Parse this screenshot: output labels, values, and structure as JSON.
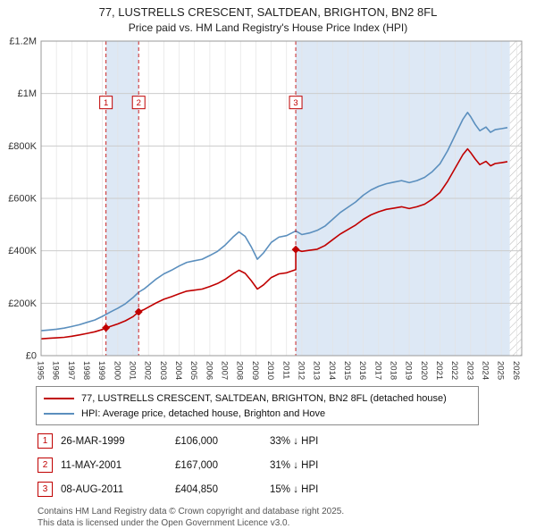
{
  "chart_data": {
    "type": "line",
    "title": "77, LUSTRELLS CRESCENT, SALTDEAN, BRIGHTON, BN2 8FL",
    "subtitle": "Price paid vs. HM Land Registry's House Price Index (HPI)",
    "xlim": [
      1995,
      2026.33
    ],
    "ylim": [
      0,
      1200000
    ],
    "grid": true,
    "legend_position": "below",
    "y_ticks": [
      {
        "value": 0,
        "label": "£0"
      },
      {
        "value": 200000,
        "label": "£200K"
      },
      {
        "value": 400000,
        "label": "£400K"
      },
      {
        "value": 600000,
        "label": "£600K"
      },
      {
        "value": 800000,
        "label": "£800K"
      },
      {
        "value": 1000000,
        "label": "£1M"
      },
      {
        "value": 1200000,
        "label": "£1.2M"
      }
    ],
    "x_ticks": [
      1995,
      1996,
      1997,
      1998,
      1999,
      2000,
      2001,
      2002,
      2003,
      2004,
      2005,
      2006,
      2007,
      2008,
      2009,
      2010,
      2011,
      2012,
      2013,
      2014,
      2015,
      2016,
      2017,
      2018,
      2019,
      2020,
      2021,
      2022,
      2023,
      2024,
      2025,
      2026
    ],
    "colors": {
      "price": "#c00000",
      "hpi": "#5b8fbe",
      "band": "#dde8f5",
      "grid_h": "#cccccc",
      "grid_v": "#e3e3e3",
      "hatch": "#b5b5b5",
      "border": "#999999",
      "axis_text": "#333333"
    },
    "bands": [
      {
        "from": 1999.23,
        "to": 2001.36
      },
      {
        "from": 2011.6,
        "to": 2025.55
      }
    ],
    "future_hatch": {
      "from": 2025.55,
      "to": 2026.33
    },
    "series": [
      {
        "id": "hpi-line",
        "name": "HPI: Average price, detached house, Brighton and Hove",
        "color": "#5b8fbe",
        "points": [
          [
            1995.0,
            95000
          ],
          [
            1995.5,
            98000
          ],
          [
            1996.0,
            101000
          ],
          [
            1996.5,
            105000
          ],
          [
            1997.0,
            111000
          ],
          [
            1997.5,
            118000
          ],
          [
            1998.0,
            127000
          ],
          [
            1998.5,
            136000
          ],
          [
            1999.0,
            150000
          ],
          [
            1999.25,
            158000
          ],
          [
            1999.5,
            166000
          ],
          [
            2000.0,
            181000
          ],
          [
            2000.5,
            198000
          ],
          [
            2001.0,
            222000
          ],
          [
            2001.36,
            242000
          ],
          [
            2001.75,
            256000
          ],
          [
            2002.0,
            268000
          ],
          [
            2002.5,
            292000
          ],
          [
            2003.0,
            312000
          ],
          [
            2003.5,
            326000
          ],
          [
            2004.0,
            342000
          ],
          [
            2004.5,
            356000
          ],
          [
            2005.0,
            362000
          ],
          [
            2005.5,
            368000
          ],
          [
            2006.0,
            382000
          ],
          [
            2006.5,
            398000
          ],
          [
            2007.0,
            422000
          ],
          [
            2007.5,
            452000
          ],
          [
            2007.9,
            472000
          ],
          [
            2008.3,
            455000
          ],
          [
            2008.7,
            415000
          ],
          [
            2009.1,
            368000
          ],
          [
            2009.5,
            392000
          ],
          [
            2010.0,
            432000
          ],
          [
            2010.5,
            452000
          ],
          [
            2011.0,
            458000
          ],
          [
            2011.6,
            476000
          ],
          [
            2012.0,
            462000
          ],
          [
            2012.5,
            468000
          ],
          [
            2013.0,
            478000
          ],
          [
            2013.5,
            494000
          ],
          [
            2014.0,
            520000
          ],
          [
            2014.5,
            546000
          ],
          [
            2015.0,
            566000
          ],
          [
            2015.5,
            586000
          ],
          [
            2016.0,
            612000
          ],
          [
            2016.5,
            632000
          ],
          [
            2017.0,
            646000
          ],
          [
            2017.5,
            656000
          ],
          [
            2018.0,
            662000
          ],
          [
            2018.5,
            668000
          ],
          [
            2019.0,
            660000
          ],
          [
            2019.5,
            668000
          ],
          [
            2020.0,
            680000
          ],
          [
            2020.5,
            702000
          ],
          [
            2021.0,
            732000
          ],
          [
            2021.5,
            782000
          ],
          [
            2022.0,
            842000
          ],
          [
            2022.5,
            902000
          ],
          [
            2022.8,
            928000
          ],
          [
            2023.0,
            912000
          ],
          [
            2023.3,
            882000
          ],
          [
            2023.6,
            858000
          ],
          [
            2024.0,
            872000
          ],
          [
            2024.3,
            852000
          ],
          [
            2024.6,
            862000
          ],
          [
            2025.0,
            866000
          ],
          [
            2025.4,
            870000
          ]
        ]
      },
      {
        "id": "price-paid-line",
        "name": "77, LUSTRELLS CRESCENT, SALTDEAN, BRIGHTON, BN2 8FL (detached house)",
        "color": "#c00000",
        "points": [
          [
            1995.0,
            64000
          ],
          [
            1995.5,
            66000
          ],
          [
            1996.0,
            68000
          ],
          [
            1996.5,
            70000
          ],
          [
            1997.0,
            74000
          ],
          [
            1997.5,
            79000
          ],
          [
            1998.0,
            85000
          ],
          [
            1998.5,
            91000
          ],
          [
            1999.0,
            100000
          ],
          [
            1999.23,
            106000
          ],
          [
            1999.5,
            111000
          ],
          [
            2000.0,
            121000
          ],
          [
            2000.5,
            133000
          ],
          [
            2001.0,
            149000
          ],
          [
            2001.36,
            167000
          ],
          [
            2001.75,
            177000
          ],
          [
            2002.0,
            185000
          ],
          [
            2002.5,
            201000
          ],
          [
            2003.0,
            215000
          ],
          [
            2003.5,
            225000
          ],
          [
            2004.0,
            236000
          ],
          [
            2004.5,
            246000
          ],
          [
            2005.0,
            250000
          ],
          [
            2005.5,
            254000
          ],
          [
            2006.0,
            264000
          ],
          [
            2006.5,
            275000
          ],
          [
            2007.0,
            291000
          ],
          [
            2007.5,
            312000
          ],
          [
            2007.9,
            326000
          ],
          [
            2008.3,
            314000
          ],
          [
            2008.7,
            286000
          ],
          [
            2009.1,
            254000
          ],
          [
            2009.5,
            270000
          ],
          [
            2010.0,
            298000
          ],
          [
            2010.5,
            312000
          ],
          [
            2011.0,
            316000
          ],
          [
            2011.6,
            328000
          ],
          [
            2011.6,
            404850
          ],
          [
            2012.0,
            398000
          ],
          [
            2012.5,
            402000
          ],
          [
            2013.0,
            406000
          ],
          [
            2013.5,
            420000
          ],
          [
            2014.0,
            442000
          ],
          [
            2014.5,
            464000
          ],
          [
            2015.0,
            481000
          ],
          [
            2015.5,
            498000
          ],
          [
            2016.0,
            520000
          ],
          [
            2016.5,
            537000
          ],
          [
            2017.0,
            549000
          ],
          [
            2017.5,
            558000
          ],
          [
            2018.0,
            563000
          ],
          [
            2018.5,
            568000
          ],
          [
            2019.0,
            561000
          ],
          [
            2019.5,
            568000
          ],
          [
            2020.0,
            578000
          ],
          [
            2020.5,
            597000
          ],
          [
            2021.0,
            622000
          ],
          [
            2021.5,
            665000
          ],
          [
            2022.0,
            716000
          ],
          [
            2022.5,
            767000
          ],
          [
            2022.8,
            789000
          ],
          [
            2023.0,
            775000
          ],
          [
            2023.3,
            750000
          ],
          [
            2023.6,
            729000
          ],
          [
            2024.0,
            741000
          ],
          [
            2024.3,
            724000
          ],
          [
            2024.6,
            733000
          ],
          [
            2025.0,
            736000
          ],
          [
            2025.4,
            740000
          ]
        ]
      }
    ],
    "sales": [
      {
        "num": "1",
        "year": 1999.23,
        "date": "26-MAR-1999",
        "price": 106000,
        "price_label": "£106,000",
        "vs_hpi": "33% ↓ HPI"
      },
      {
        "num": "2",
        "year": 2001.36,
        "date": "11-MAY-2001",
        "price": 167000,
        "price_label": "£167,000",
        "vs_hpi": "31% ↓ HPI"
      },
      {
        "num": "3",
        "year": 2011.6,
        "date": "08-AUG-2011",
        "price": 404850,
        "price_label": "£404,850",
        "vs_hpi": "15% ↓ HPI"
      }
    ],
    "legend": {
      "items": [
        {
          "label": "77, LUSTRELLS CRESCENT, SALTDEAN, BRIGHTON, BN2 8FL (detached house)",
          "color": "#c00000"
        },
        {
          "label": "HPI: Average price, detached house, Brighton and Hove",
          "color": "#5b8fbe"
        }
      ]
    }
  },
  "footer": {
    "line1": "Contains HM Land Registry data © Crown copyright and database right 2025.",
    "line2": "This data is licensed under the Open Government Licence v3.0."
  }
}
